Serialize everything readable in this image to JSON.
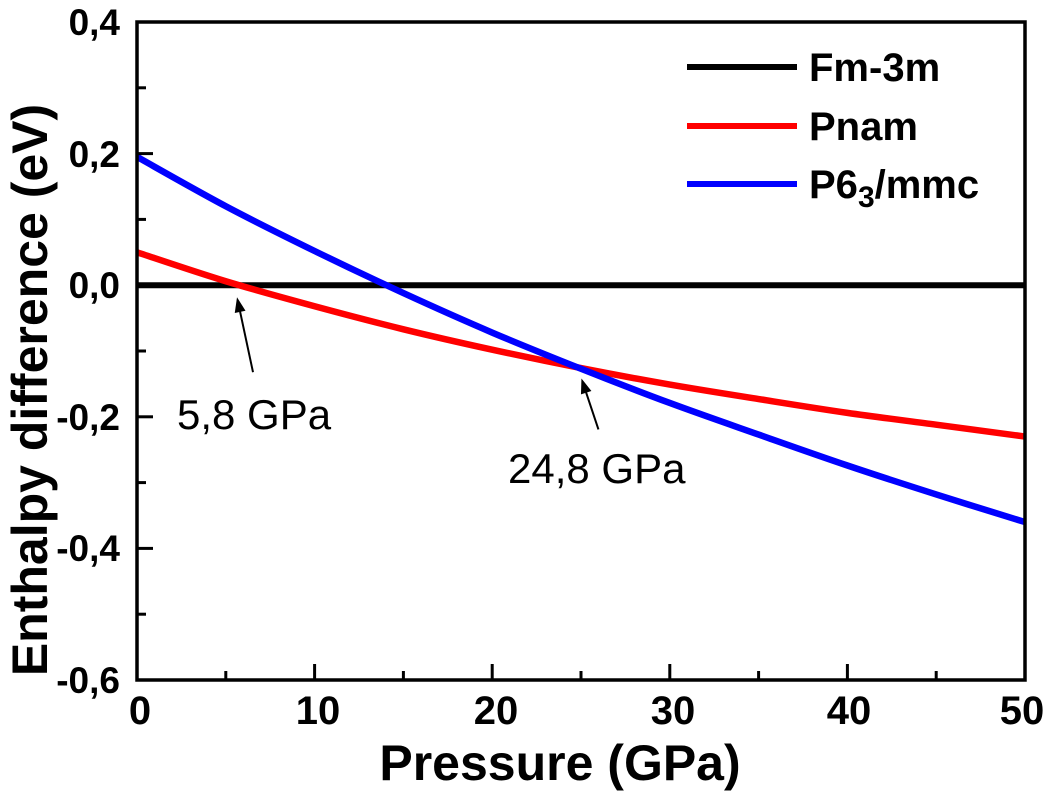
{
  "figure": {
    "background": "#ffffff",
    "frame_color": "#000000"
  },
  "chart_data": {
    "type": "line",
    "title": "",
    "xlabel": "Pressure (GPa)",
    "ylabel": "Enthalpy difference (eV)",
    "xlim": [
      0,
      50
    ],
    "ylim": [
      -0.6,
      0.4
    ],
    "grid": false,
    "legend_position": "top-right",
    "x_ticks": [
      0,
      10,
      20,
      30,
      40,
      50
    ],
    "x_tick_labels": [
      "0",
      "10",
      "20",
      "30",
      "40",
      "50"
    ],
    "x_minor_ticks": [
      5,
      15,
      25,
      35,
      45
    ],
    "y_ticks": [
      0.4,
      0.2,
      0.0,
      -0.2,
      -0.4,
      -0.6
    ],
    "y_tick_labels": [
      "0,4",
      "0,2",
      "0,0",
      "-0,2",
      "-0,4",
      "-0,6"
    ],
    "y_minor_ticks": [
      0.3,
      0.1,
      -0.1,
      -0.3,
      -0.5
    ],
    "x": [
      0,
      5,
      10,
      15,
      20,
      25,
      30,
      35,
      40,
      45,
      50
    ],
    "series": [
      {
        "name": "Fm-3m",
        "color": "#000000",
        "values": [
          0,
          0,
          0,
          0,
          0,
          0,
          0,
          0,
          0,
          0,
          0
        ]
      },
      {
        "name": "Pnam",
        "color": "#ff0000",
        "values": [
          0.05,
          0.006,
          -0.032,
          -0.067,
          -0.098,
          -0.126,
          -0.151,
          -0.173,
          -0.194,
          -0.212,
          -0.23
        ]
      },
      {
        "name": "P63/mmc",
        "color": "#0000ff",
        "values": [
          0.195,
          0.12,
          0.052,
          -0.012,
          -0.072,
          -0.127,
          -0.179,
          -0.227,
          -0.274,
          -0.318,
          -0.36
        ]
      }
    ],
    "annotations": [
      {
        "text": "5,8 GPa",
        "target_x": 5.8,
        "target_y": 0.0
      },
      {
        "text": "24,8 GPa",
        "target_x": 24.8,
        "target_y": -0.125
      }
    ]
  },
  "legend": {
    "items": [
      {
        "pre": "Fm-3m",
        "sub": "",
        "post": "",
        "color": "#000000"
      },
      {
        "pre": "Pnam",
        "sub": "",
        "post": "",
        "color": "#ff0000"
      },
      {
        "pre": "P6",
        "sub": "3",
        "post": "/mmc",
        "color": "#0000ff"
      }
    ]
  }
}
